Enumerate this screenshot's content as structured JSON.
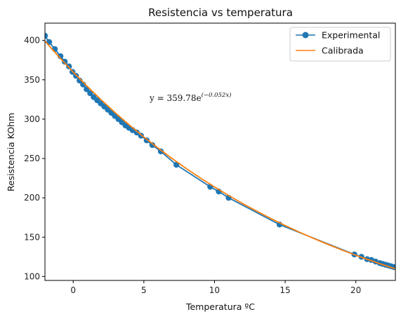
{
  "chart_data": {
    "type": "line",
    "title": "Resistencia vs temperatura",
    "xlabel": "Temperatura ºC",
    "ylabel": "Resistencia KOhm",
    "xlim": [
      -2.0,
      22.8
    ],
    "ylim": [
      95,
      422
    ],
    "xticks": [
      0,
      5,
      10,
      15,
      20
    ],
    "yticks": [
      100,
      150,
      200,
      250,
      300,
      350,
      400
    ],
    "grid": false,
    "legend_position": "top-right",
    "annotation": {
      "prefix": "y = 359.78e",
      "exponent": "(−0.052x)"
    },
    "series": [
      {
        "name": "Experimental",
        "color": "#1f77b4",
        "marker": "circle",
        "x": [
          -2.0,
          -1.7,
          -1.3,
          -0.9,
          -0.6,
          -0.3,
          -0.05,
          0.2,
          0.45,
          0.7,
          0.95,
          1.2,
          1.45,
          1.7,
          1.95,
          2.2,
          2.45,
          2.7,
          2.95,
          3.2,
          3.45,
          3.7,
          3.95,
          4.2,
          4.5,
          4.8,
          5.2,
          5.6,
          6.2,
          7.3,
          9.7,
          10.3,
          11.0,
          14.6,
          19.9,
          20.4,
          20.8,
          21.1,
          21.4,
          21.7,
          21.9,
          22.1,
          22.3,
          22.5,
          22.7
        ],
        "y": [
          406,
          398,
          389,
          380,
          373,
          367,
          360,
          355,
          349,
          344,
          338,
          333,
          328,
          324,
          320,
          316,
          312,
          308,
          304,
          300,
          296,
          292,
          289,
          286,
          283,
          279,
          273,
          267,
          259,
          242,
          214,
          208,
          200,
          166,
          128,
          125,
          122,
          121,
          119,
          117,
          116,
          115,
          114,
          113,
          112
        ]
      },
      {
        "name": "Calibrada",
        "color": "#ff7f0e",
        "marker": "none",
        "x": [
          -2.0,
          -1.0,
          0.0,
          1.0,
          2.0,
          3.0,
          4.0,
          5.0,
          6.0,
          7.0,
          8.0,
          9.0,
          10.0,
          11.0,
          12.0,
          13.0,
          14.0,
          15.0,
          16.0,
          17.0,
          18.0,
          19.0,
          20.0,
          21.0,
          22.0,
          22.8
        ],
        "y": [
          399.2,
          379.0,
          359.8,
          341.5,
          324.2,
          307.7,
          292.1,
          277.3,
          263.3,
          249.9,
          237.2,
          225.2,
          213.8,
          202.9,
          192.6,
          182.9,
          173.6,
          164.8,
          156.4,
          148.5,
          141.0,
          133.8,
          127.0,
          120.6,
          114.5,
          109.8
        ]
      }
    ]
  }
}
